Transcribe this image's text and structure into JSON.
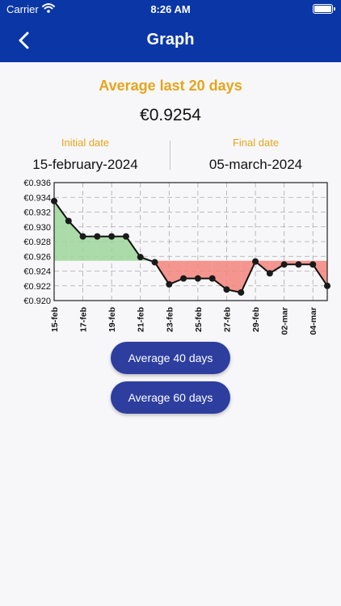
{
  "status_bar": {
    "carrier": "Carrier",
    "time": "8:26 AM"
  },
  "nav": {
    "title": "Graph",
    "back_icon": "chevron-left-icon"
  },
  "summary": {
    "title": "Average last 20 days",
    "value": "€0.9254"
  },
  "dates": {
    "initial_label": "Initial date",
    "initial_value": "15-february-2024",
    "final_label": "Final date",
    "final_value": "05-march-2024"
  },
  "buttons": {
    "avg40": "Average 40 days",
    "avg60": "Average 60 days"
  },
  "colors": {
    "header": "#0a36a6",
    "accent": "#e5a51d",
    "button": "#2d3e9f",
    "above_fill": "#9ed69a",
    "below_fill": "#f3847c"
  },
  "chart_data": {
    "type": "line",
    "x": [
      "15-feb",
      "16-feb",
      "17-feb",
      "18-feb",
      "19-feb",
      "20-feb",
      "21-feb",
      "22-feb",
      "23-feb",
      "24-feb",
      "25-feb",
      "26-feb",
      "27-feb",
      "28-feb",
      "29-feb",
      "01-mar",
      "02-mar",
      "03-mar",
      "04-mar",
      "05-mar"
    ],
    "x_ticks": [
      "15-feb",
      "17-feb",
      "19-feb",
      "21-feb",
      "23-feb",
      "25-feb",
      "27-feb",
      "29-feb",
      "02-mar",
      "04-mar"
    ],
    "values": [
      0.9335,
      0.9308,
      0.9287,
      0.9287,
      0.9287,
      0.9287,
      0.9259,
      0.9252,
      0.9222,
      0.923,
      0.923,
      0.923,
      0.9215,
      0.9211,
      0.9253,
      0.9237,
      0.9249,
      0.9249,
      0.9249,
      0.922
    ],
    "average": 0.9254,
    "ylim": [
      0.92,
      0.936
    ],
    "y_ticks": [
      "€0.936",
      "€0.934",
      "€0.932",
      "€0.930",
      "€0.928",
      "€0.926",
      "€0.924",
      "€0.922",
      "€0.920"
    ],
    "grid": true
  }
}
